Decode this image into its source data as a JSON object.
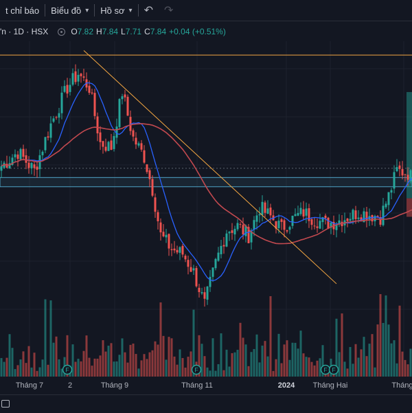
{
  "toolbar": {
    "indicators_label": "t chỉ báo",
    "chart_label": "Biểu đồ",
    "profile_label": "Hồ sơ"
  },
  "legend": {
    "symbol": "'n · 1D · HSX",
    "open_label": "O",
    "open": "7.82",
    "high_label": "H",
    "high": "7.84",
    "low_label": "L",
    "low": "7.71",
    "close_label": "C",
    "close": "7.84",
    "change": "+0.04 (+0.51%)"
  },
  "colors": {
    "up": "#26a69a",
    "down": "#ef5350",
    "ma_short": "#2962ff",
    "ma_long": "#c2494f",
    "trendline": "#f5a742",
    "resistance": "#f5a742",
    "support_zone": "#4fa3c7"
  },
  "chart_data": {
    "type": "candlestick",
    "x_ticks": [
      {
        "label": "Tháng 7",
        "bold": false
      },
      {
        "label": "2",
        "bold": false
      },
      {
        "label": "Tháng 9",
        "bold": false
      },
      {
        "label": "Tháng 11",
        "bold": false
      },
      {
        "label": "2024",
        "bold": true
      },
      {
        "label": "Tháng Hai",
        "bold": false
      },
      {
        "label": "Tháng",
        "bold": false
      }
    ],
    "price_range": [
      5.35,
      11.3
    ],
    "resistance_price": 11.0,
    "support_zone": [
      8.15,
      8.35
    ],
    "trendline": {
      "from": {
        "date": "2023-08-16",
        "price": 11.1
      },
      "to": {
        "date": "2024-02-29",
        "price": 6.05
      }
    },
    "dividend_markers": [
      {
        "label": "F"
      },
      {
        "label": "F"
      },
      {
        "label": "F"
      },
      {
        "label": "F"
      }
    ],
    "anchors": [
      [
        0,
        8.6
      ],
      [
        6,
        8.9
      ],
      [
        12,
        8.5
      ],
      [
        18,
        9.5
      ],
      [
        24,
        10.3
      ],
      [
        28,
        10.6
      ],
      [
        32,
        10.3
      ],
      [
        36,
        9.1
      ],
      [
        40,
        9.0
      ],
      [
        44,
        10.2
      ],
      [
        48,
        9.2
      ],
      [
        52,
        8.8
      ],
      [
        55,
        8.1
      ],
      [
        58,
        7.1
      ],
      [
        62,
        6.8
      ],
      [
        66,
        6.7
      ],
      [
        70,
        6.3
      ],
      [
        74,
        5.6
      ],
      [
        78,
        6.5
      ],
      [
        82,
        7.2
      ],
      [
        86,
        7.3
      ],
      [
        90,
        7.1
      ],
      [
        94,
        7.7
      ],
      [
        98,
        7.5
      ],
      [
        102,
        7.25
      ],
      [
        106,
        7.45
      ],
      [
        110,
        7.6
      ],
      [
        114,
        7.45
      ],
      [
        118,
        7.35
      ],
      [
        122,
        7.4
      ],
      [
        126,
        7.5
      ],
      [
        130,
        7.6
      ],
      [
        134,
        7.55
      ],
      [
        138,
        7.5
      ],
      [
        141,
        7.95
      ],
      [
        144,
        8.5
      ],
      [
        148,
        8.45
      ],
      [
        150,
        8.3
      ]
    ]
  }
}
